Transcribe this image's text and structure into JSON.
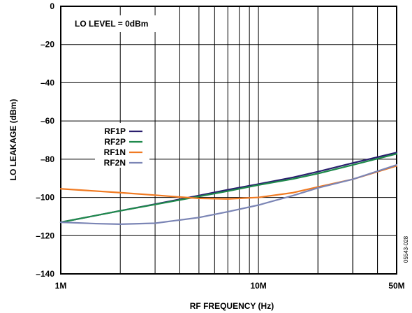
{
  "chart_data": {
    "type": "line",
    "xlabel": "RF FREQUENCY (Hz)",
    "ylabel": "LO LEAKAGE (dBm)",
    "x_scale": "log",
    "xlim": [
      1000000,
      50000000
    ],
    "ylim": [
      -140,
      0
    ],
    "x_tick_labels": [
      {
        "x": 1000000,
        "label": "1M"
      },
      {
        "x": 10000000,
        "label": "10M"
      },
      {
        "x": 50000000,
        "label": "50M"
      }
    ],
    "y_ticks": [
      0,
      -20,
      -40,
      -60,
      -80,
      -100,
      -120,
      -140
    ],
    "y_tick_labels": [
      "0",
      "–20",
      "–40",
      "–60",
      "–80",
      "–100",
      "–120",
      "–140"
    ],
    "grid": true,
    "annotation": "LO LEVEL = 0dBm",
    "figure_code": "05543-028",
    "legend_placement": "left",
    "series": [
      {
        "name": "RF1P",
        "color": "#2a1f6e",
        "x": [
          1000000,
          2000000,
          3000000,
          5000000,
          7000000,
          10000000,
          15000000,
          20000000,
          30000000,
          50000000
        ],
        "y": [
          -113,
          -107,
          -103.5,
          -99,
          -96,
          -93,
          -89.5,
          -86.5,
          -82,
          -76.5
        ]
      },
      {
        "name": "RF2P",
        "color": "#1f8a4c",
        "x": [
          1000000,
          2000000,
          3000000,
          5000000,
          7000000,
          10000000,
          15000000,
          20000000,
          30000000,
          50000000
        ],
        "y": [
          -113,
          -107,
          -103.7,
          -99.5,
          -96.7,
          -93.5,
          -90.3,
          -87.5,
          -83,
          -77.2
        ]
      },
      {
        "name": "RF1N",
        "color": "#f07a22",
        "x": [
          1000000,
          2000000,
          3000000,
          4000000,
          5000000,
          7000000,
          10000000,
          15000000,
          20000000,
          30000000,
          50000000
        ],
        "y": [
          -95.5,
          -97.5,
          -98.8,
          -99.8,
          -100.5,
          -100.8,
          -100,
          -97.5,
          -94.5,
          -90.5,
          -83.5
        ]
      },
      {
        "name": "RF2N",
        "color": "#7b85b5",
        "x": [
          1000000,
          1500000,
          2000000,
          3000000,
          5000000,
          7000000,
          10000000,
          15000000,
          20000000,
          30000000,
          50000000
        ],
        "y": [
          -113,
          -113.7,
          -114,
          -113.5,
          -110.5,
          -107.5,
          -104,
          -99,
          -95,
          -90.5,
          -83
        ]
      }
    ]
  }
}
